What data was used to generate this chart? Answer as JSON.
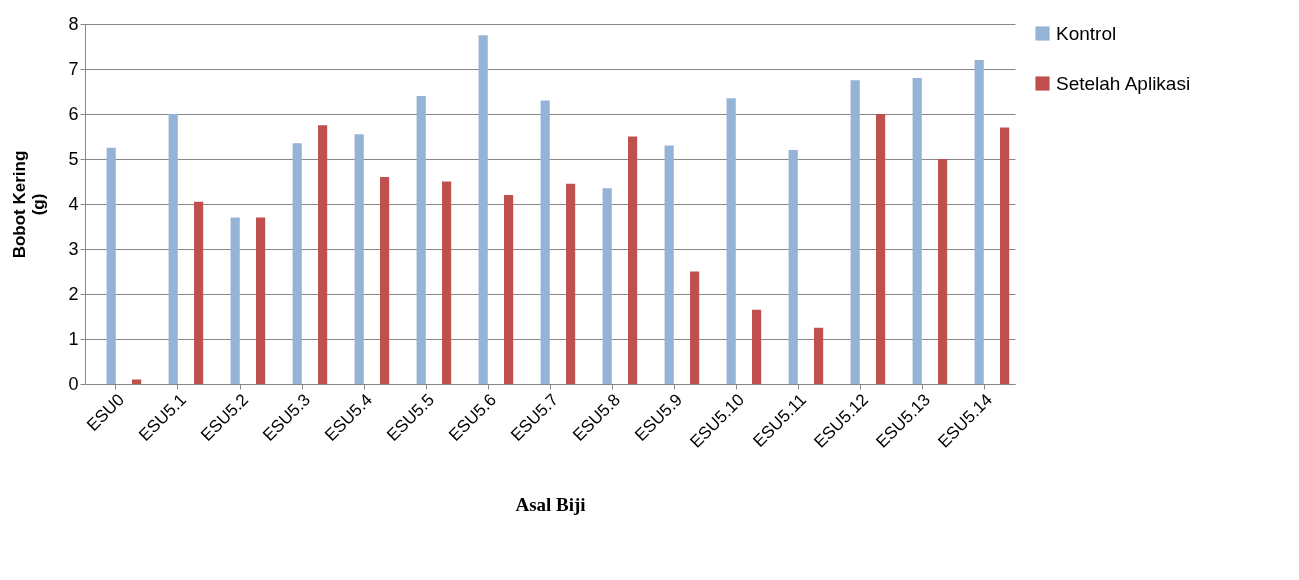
{
  "chart_data": {
    "type": "bar",
    "xlabel": "Asal Biji",
    "ylabel": "Bobot Kering\n(g)",
    "categories": [
      "ESU0",
      "ESU5.1",
      "ESU5.2",
      "ESU5.3",
      "ESU5.4",
      "ESU5.5",
      "ESU5.6",
      "ESU5.7",
      "ESU5.8",
      "ESU5.9",
      "ESU5.10",
      "ESU5.11",
      "ESU5.12",
      "ESU5.13",
      "ESU5.14"
    ],
    "series": [
      {
        "name": "Kontrol",
        "color": "#95b3d7",
        "values": [
          5.25,
          6.0,
          3.7,
          5.35,
          5.55,
          6.4,
          7.75,
          6.3,
          4.35,
          5.3,
          6.35,
          5.2,
          6.75,
          6.8,
          7.2
        ]
      },
      {
        "name": "Setelah Aplikasi",
        "color": "#c0504d",
        "values": [
          0.1,
          4.05,
          3.7,
          5.75,
          4.6,
          4.5,
          4.2,
          4.45,
          5.5,
          2.5,
          1.65,
          1.25,
          6.0,
          5.0,
          5.7
        ]
      }
    ],
    "ylim": [
      0,
      8
    ],
    "yticks": [
      0,
      1,
      2,
      3,
      4,
      5,
      6,
      7,
      8
    ],
    "grid": "y",
    "legend": "right"
  }
}
